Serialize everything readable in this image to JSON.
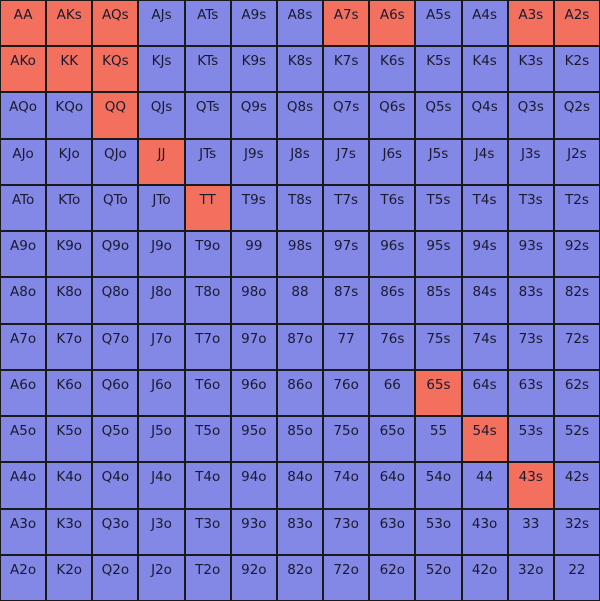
{
  "colors": {
    "default": "#8387e6",
    "highlight": "#f36f5e",
    "border": "#1a1a1a",
    "text": "#1a1a2e"
  },
  "rows": [
    [
      "AA",
      "AKs",
      "AQs",
      "AJs",
      "ATs",
      "A9s",
      "A8s",
      "A7s",
      "A6s",
      "A5s",
      "A4s",
      "A3s",
      "A2s"
    ],
    [
      "AKo",
      "KK",
      "KQs",
      "KJs",
      "KTs",
      "K9s",
      "K8s",
      "K7s",
      "K6s",
      "K5s",
      "K4s",
      "K3s",
      "K2s"
    ],
    [
      "AQo",
      "KQo",
      "QQ",
      "QJs",
      "QTs",
      "Q9s",
      "Q8s",
      "Q7s",
      "Q6s",
      "Q5s",
      "Q4s",
      "Q3s",
      "Q2s"
    ],
    [
      "AJo",
      "KJo",
      "QJo",
      "JJ",
      "JTs",
      "J9s",
      "J8s",
      "J7s",
      "J6s",
      "J5s",
      "J4s",
      "J3s",
      "J2s"
    ],
    [
      "ATo",
      "KTo",
      "QTo",
      "JTo",
      "TT",
      "T9s",
      "T8s",
      "T7s",
      "T6s",
      "T5s",
      "T4s",
      "T3s",
      "T2s"
    ],
    [
      "A9o",
      "K9o",
      "Q9o",
      "J9o",
      "T9o",
      "99",
      "98s",
      "97s",
      "96s",
      "95s",
      "94s",
      "93s",
      "92s"
    ],
    [
      "A8o",
      "K8o",
      "Q8o",
      "J8o",
      "T8o",
      "98o",
      "88",
      "87s",
      "86s",
      "85s",
      "84s",
      "83s",
      "82s"
    ],
    [
      "A7o",
      "K7o",
      "Q7o",
      "J7o",
      "T7o",
      "97o",
      "87o",
      "77",
      "76s",
      "75s",
      "74s",
      "73s",
      "72s"
    ],
    [
      "A6o",
      "K6o",
      "Q6o",
      "J6o",
      "T6o",
      "96o",
      "86o",
      "76o",
      "66",
      "65s",
      "64s",
      "63s",
      "62s"
    ],
    [
      "A5o",
      "K5o",
      "Q5o",
      "J5o",
      "T5o",
      "95o",
      "85o",
      "75o",
      "65o",
      "55",
      "54s",
      "53s",
      "52s"
    ],
    [
      "A4o",
      "K4o",
      "Q4o",
      "J4o",
      "T4o",
      "94o",
      "84o",
      "74o",
      "64o",
      "54o",
      "44",
      "43s",
      "42s"
    ],
    [
      "A3o",
      "K3o",
      "Q3o",
      "J3o",
      "T3o",
      "93o",
      "83o",
      "73o",
      "63o",
      "53o",
      "43o",
      "33",
      "32s"
    ],
    [
      "A2o",
      "K2o",
      "Q2o",
      "J2o",
      "T2o",
      "92o",
      "82o",
      "72o",
      "62o",
      "52o",
      "42o",
      "32o",
      "22"
    ]
  ],
  "highlighted": [
    "AA",
    "AKs",
    "AQs",
    "A7s",
    "A6s",
    "A3s",
    "A2s",
    "AKo",
    "KK",
    "KQs",
    "QQ",
    "JJ",
    "TT",
    "65s",
    "54s",
    "43s"
  ]
}
